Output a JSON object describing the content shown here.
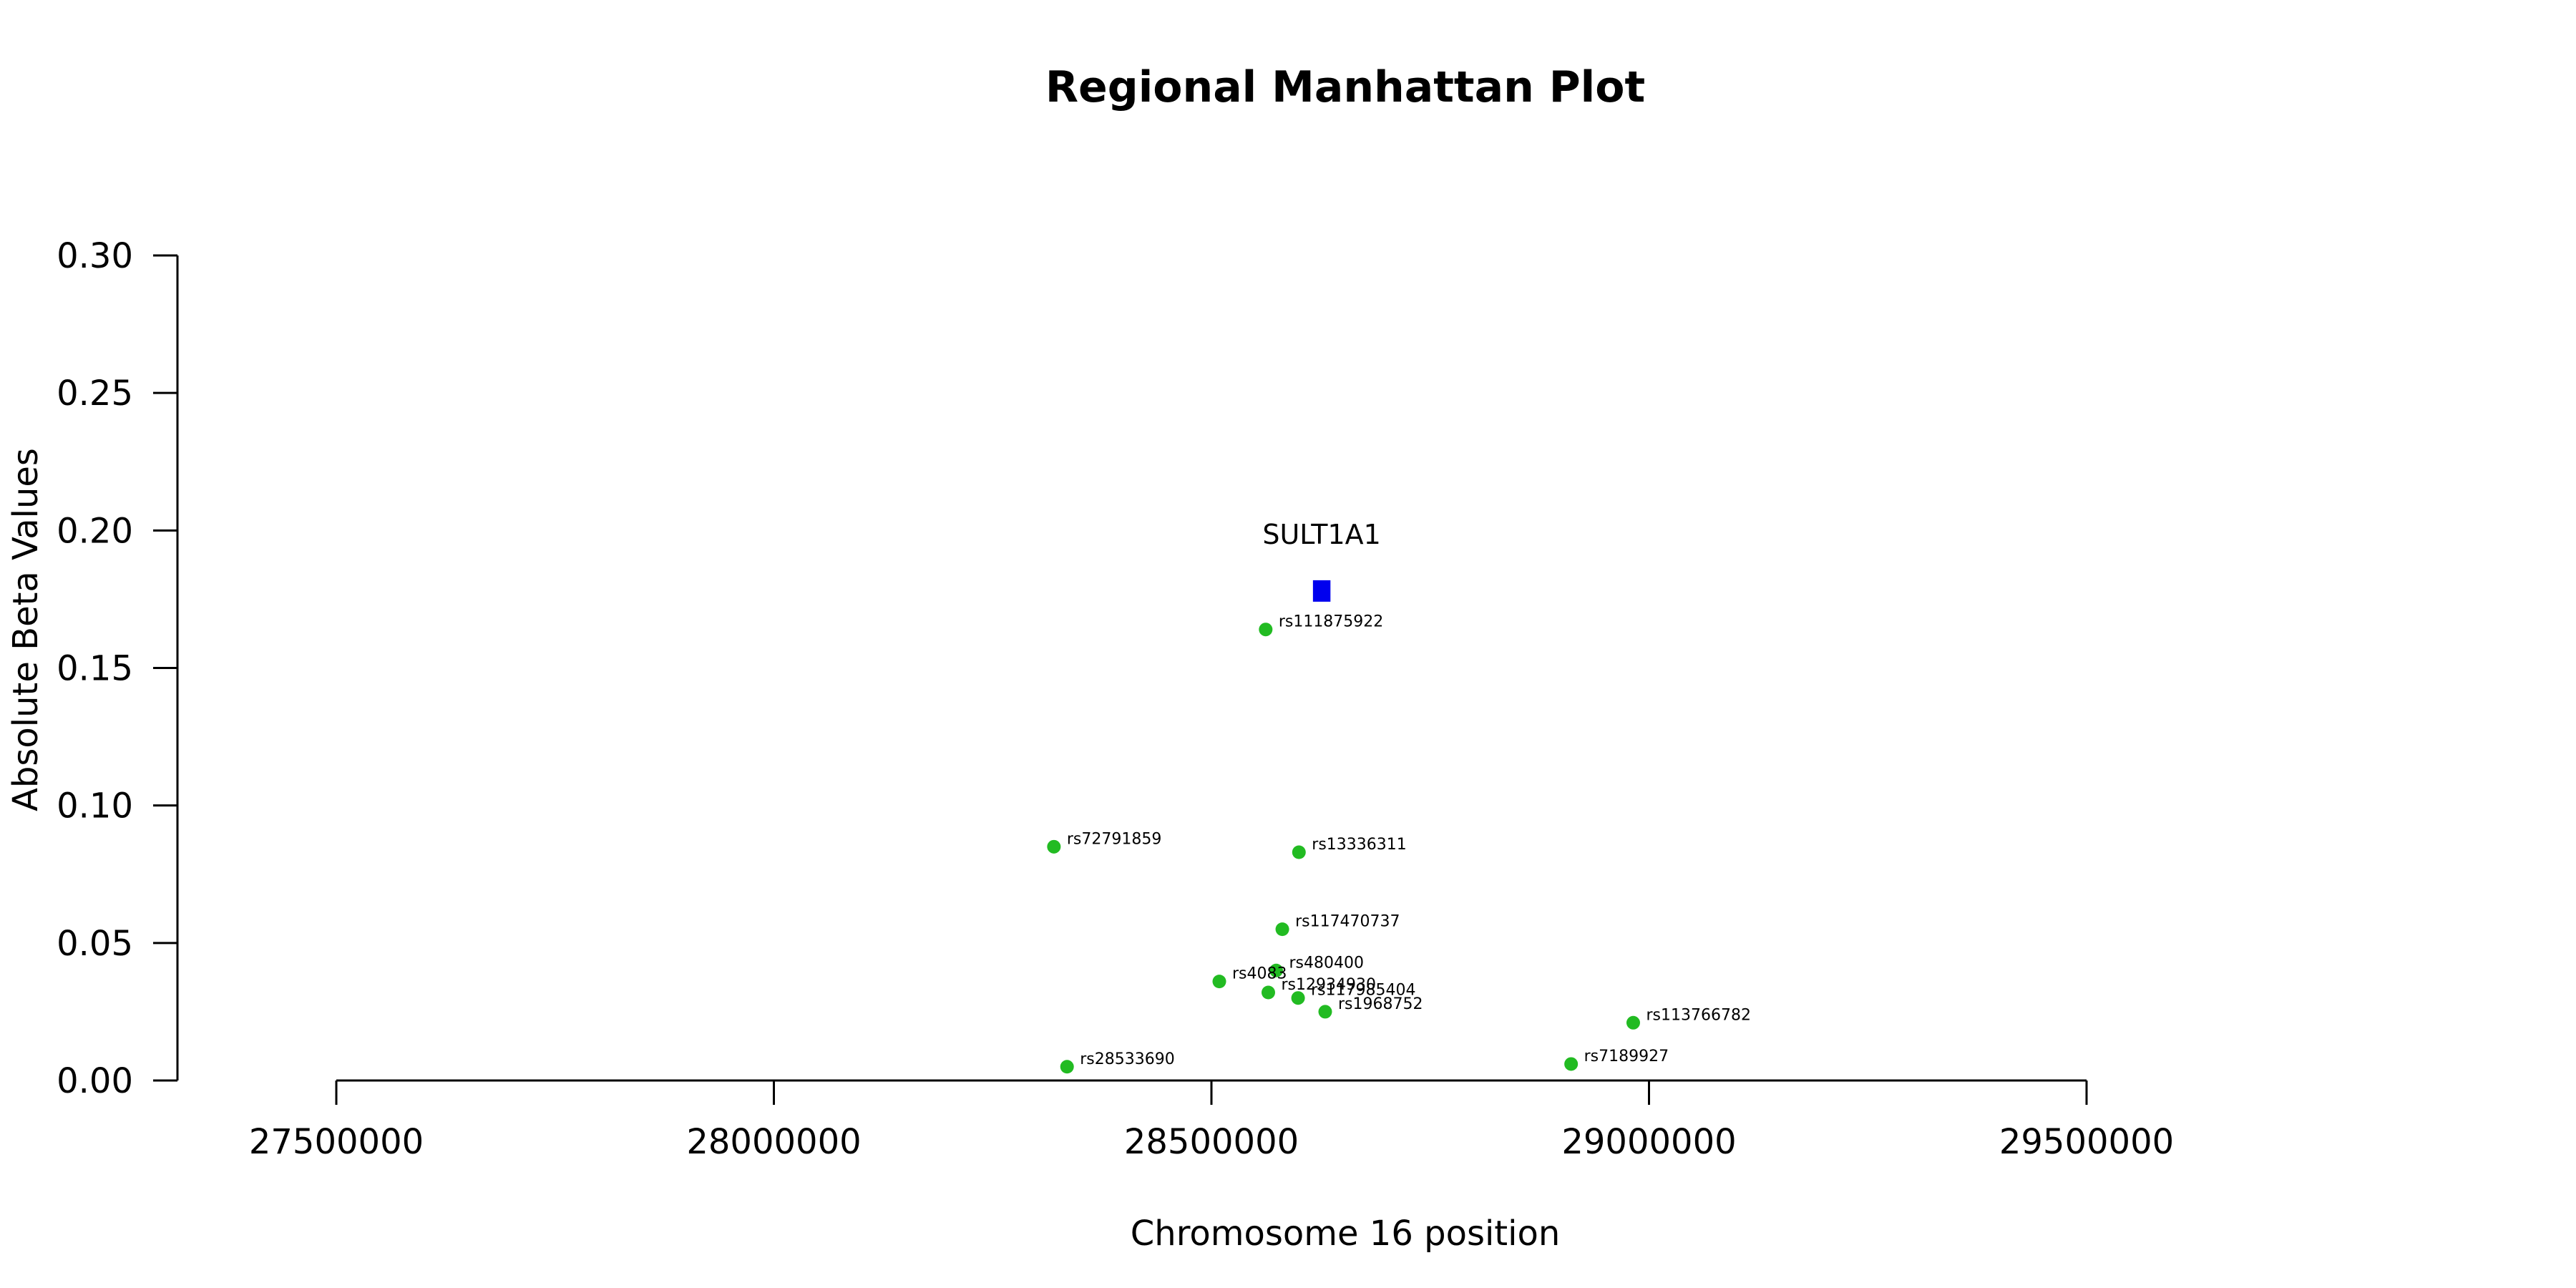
{
  "chart_data": {
    "type": "scatter",
    "title": "Regional Manhattan Plot",
    "xlabel": "Chromosome 16 position",
    "ylabel": "Absolute Beta Values",
    "xlim": [
      27500000,
      29500000
    ],
    "ylim": [
      0,
      0.3
    ],
    "xticks": [
      27500000,
      28000000,
      28500000,
      29000000,
      29500000
    ],
    "xtick_labels": [
      "27500000",
      "28000000",
      "28500000",
      "29000000",
      "29500000"
    ],
    "yticks": [
      0.0,
      0.05,
      0.1,
      0.15,
      0.2,
      0.25,
      0.3
    ],
    "ytick_labels": [
      "0.00",
      "0.05",
      "0.10",
      "0.15",
      "0.20",
      "0.25",
      "0.30"
    ],
    "grid": false,
    "point_color": "#22bb22",
    "gene_color": "#0000ee",
    "points": [
      {
        "label": "rs111875922",
        "x": 28562000,
        "y": 0.164
      },
      {
        "label": "rs72791859",
        "x": 28320000,
        "y": 0.085
      },
      {
        "label": "rs13336311",
        "x": 28600000,
        "y": 0.083
      },
      {
        "label": "rs117470737",
        "x": 28581000,
        "y": 0.055
      },
      {
        "label": "rs480400",
        "x": 28574000,
        "y": 0.04
      },
      {
        "label": "rs4083",
        "x": 28509000,
        "y": 0.036
      },
      {
        "label": "rs12934930",
        "x": 28565000,
        "y": 0.032
      },
      {
        "label": "rs117985404",
        "x": 28599000,
        "y": 0.03
      },
      {
        "label": "rs1968752",
        "x": 28630000,
        "y": 0.025
      },
      {
        "label": "rs113766782",
        "x": 28982000,
        "y": 0.021
      },
      {
        "label": "rs7189927",
        "x": 28911000,
        "y": 0.006
      },
      {
        "label": "rs28533690",
        "x": 28335000,
        "y": 0.005
      }
    ],
    "genes": [
      {
        "name": "SULT1A1",
        "x_start": 28616000,
        "x_end": 28636000,
        "y": 0.178
      }
    ]
  }
}
